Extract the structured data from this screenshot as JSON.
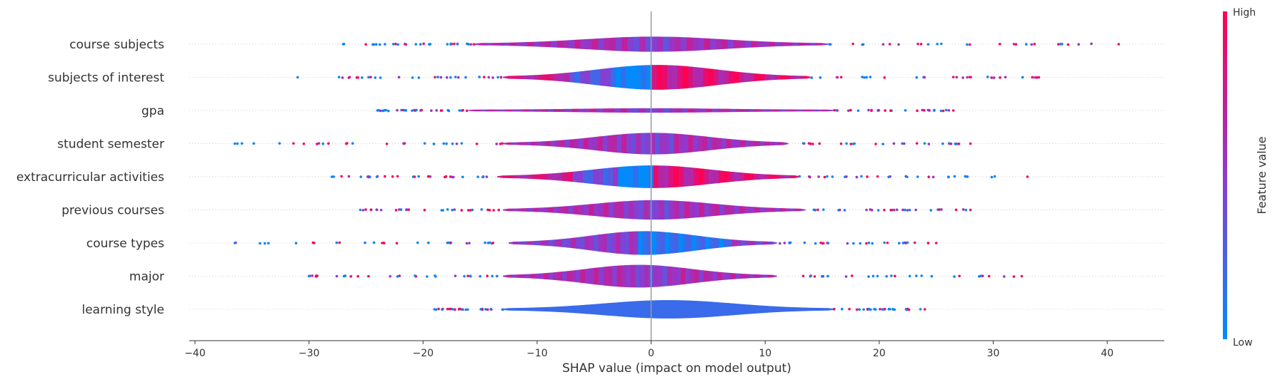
{
  "chart_data": {
    "type": "violin",
    "xlabel": "SHAP value (impact on model output)",
    "xlim": [
      -40.5,
      45
    ],
    "x_ticks": [
      -40,
      -30,
      -20,
      -10,
      0,
      10,
      20,
      30,
      40
    ],
    "features": [
      {
        "name": "course subjects",
        "low": -27,
        "high": 41,
        "core_left": -15.5,
        "core_right": 15.5,
        "width": 0.55,
        "skew": 0.2,
        "color_mode": "mixed"
      },
      {
        "name": "subjects of interest",
        "low": -31,
        "high": 34,
        "core_left": -13,
        "core_right": 14,
        "width": 1.0,
        "skew": 0.0,
        "color_mode": "split"
      },
      {
        "name": "gpa",
        "low": -24,
        "high": 26.5,
        "core_left": -16,
        "core_right": 16,
        "width": 0.05,
        "skew": 0.0,
        "color_mode": "mixed"
      },
      {
        "name": "student semester",
        "low": -36.5,
        "high": 28,
        "core_left": -13,
        "core_right": 12,
        "width": 0.85,
        "skew": 0.6,
        "color_mode": "mixed"
      },
      {
        "name": "extracurricular activities",
        "low": -28,
        "high": 33,
        "core_left": -13.5,
        "core_right": 13,
        "width": 0.9,
        "skew": 0.3,
        "color_mode": "split"
      },
      {
        "name": "previous courses",
        "low": -25.5,
        "high": 28,
        "core_left": -13,
        "core_right": 13.5,
        "width": 0.75,
        "skew": 0.0,
        "color_mode": "mixed"
      },
      {
        "name": "course types",
        "low": -36.5,
        "high": 25,
        "core_left": -12.5,
        "core_right": 11,
        "width": 0.95,
        "skew": 0.1,
        "color_mode": "blueish"
      },
      {
        "name": "major",
        "low": -30,
        "high": 32.5,
        "core_left": -13,
        "core_right": 11,
        "width": 0.9,
        "skew": -0.1,
        "color_mode": "mixed"
      },
      {
        "name": "learning style",
        "low": -19,
        "high": 24,
        "core_left": -13,
        "core_right": 16,
        "width": 0.7,
        "skew": 0.0,
        "color_mode": "blue"
      }
    ],
    "colorbar": {
      "title": "Feature value",
      "high_label": "High",
      "low_label": "Low",
      "low_color": "#008bfb",
      "high_color": "#ff0052"
    }
  }
}
